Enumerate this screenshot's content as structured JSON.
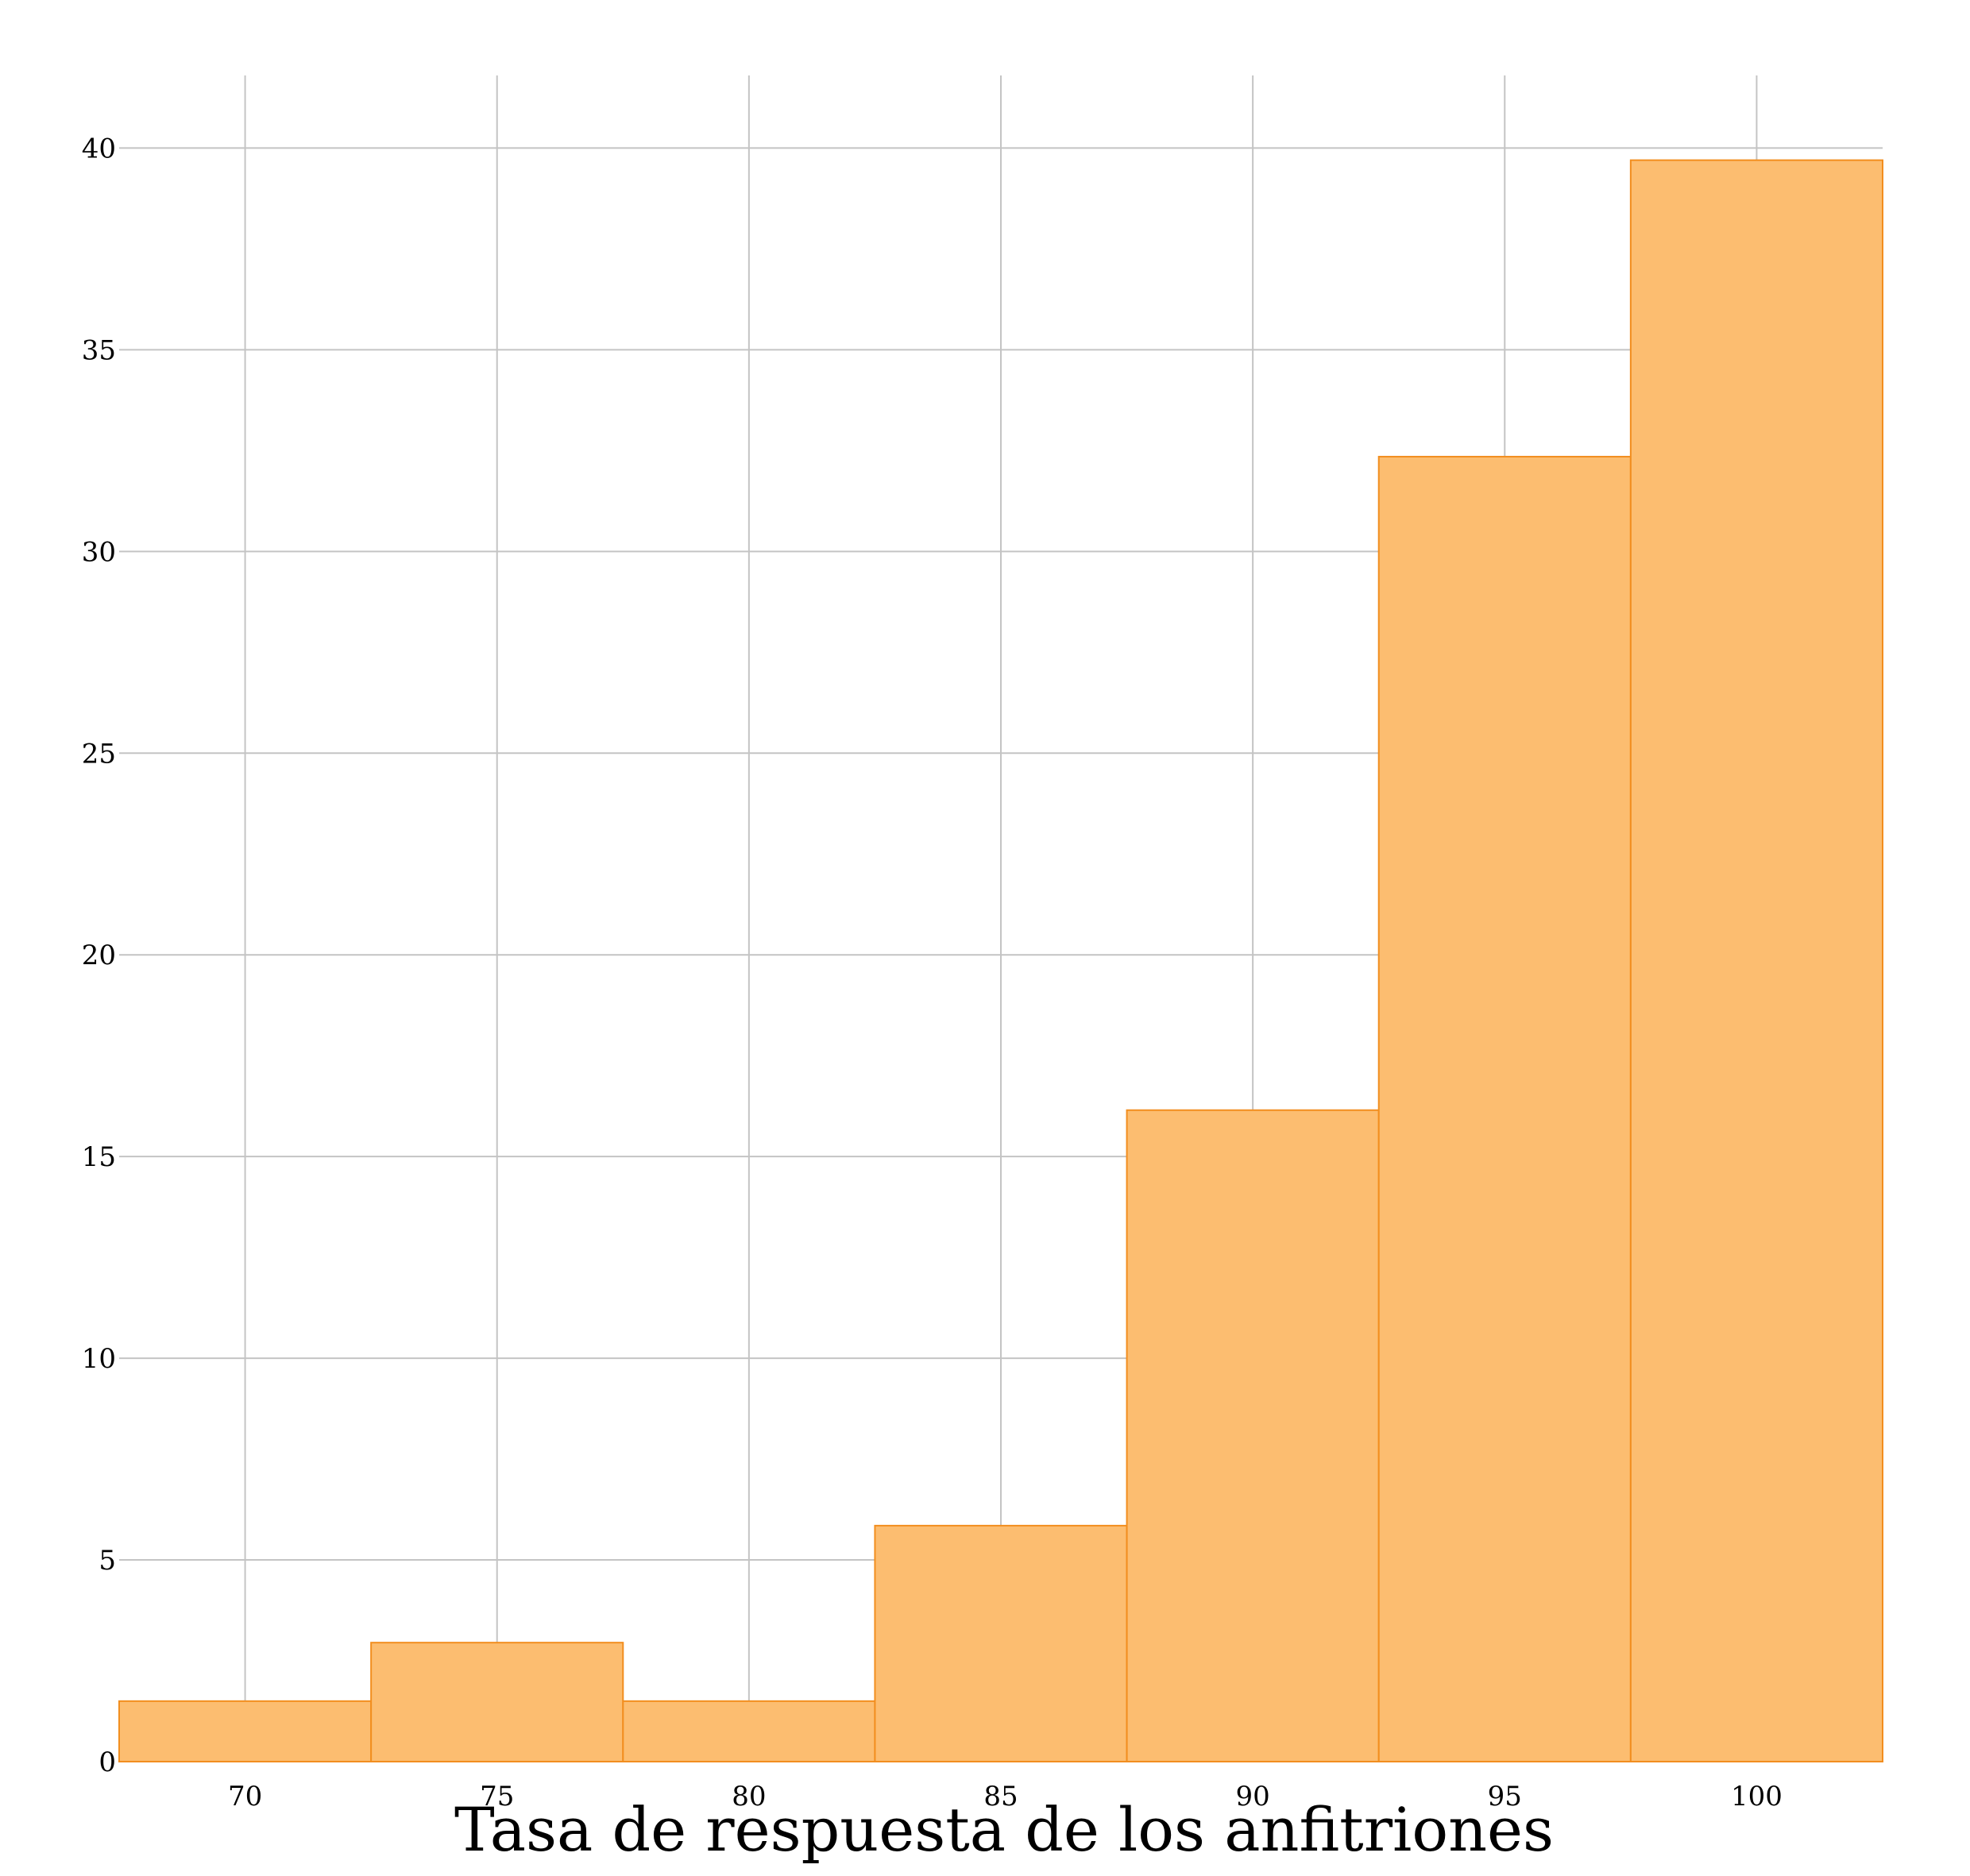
{
  "chart_data": {
    "type": "bar",
    "x": [
      70,
      75,
      80,
      85,
      90,
      95,
      100
    ],
    "bin_width": 5,
    "values": [
      1.5,
      2.95,
      1.5,
      5.85,
      16.15,
      32.35,
      39.7
    ],
    "xlabel": "Tasa de respuesta de los anfitriones",
    "ylabel": "",
    "title": "",
    "xlim": [
      67.5,
      102.5
    ],
    "ylim": [
      0,
      41.8
    ],
    "x_ticks": [
      70,
      75,
      80,
      85,
      90,
      95,
      100
    ],
    "y_ticks": [
      0,
      5,
      10,
      15,
      20,
      25,
      30,
      35,
      40
    ],
    "grid": true,
    "colors": {
      "fill": "#fcbd70",
      "edge": "#f28e1f",
      "grid": "#c4c4c4"
    }
  }
}
